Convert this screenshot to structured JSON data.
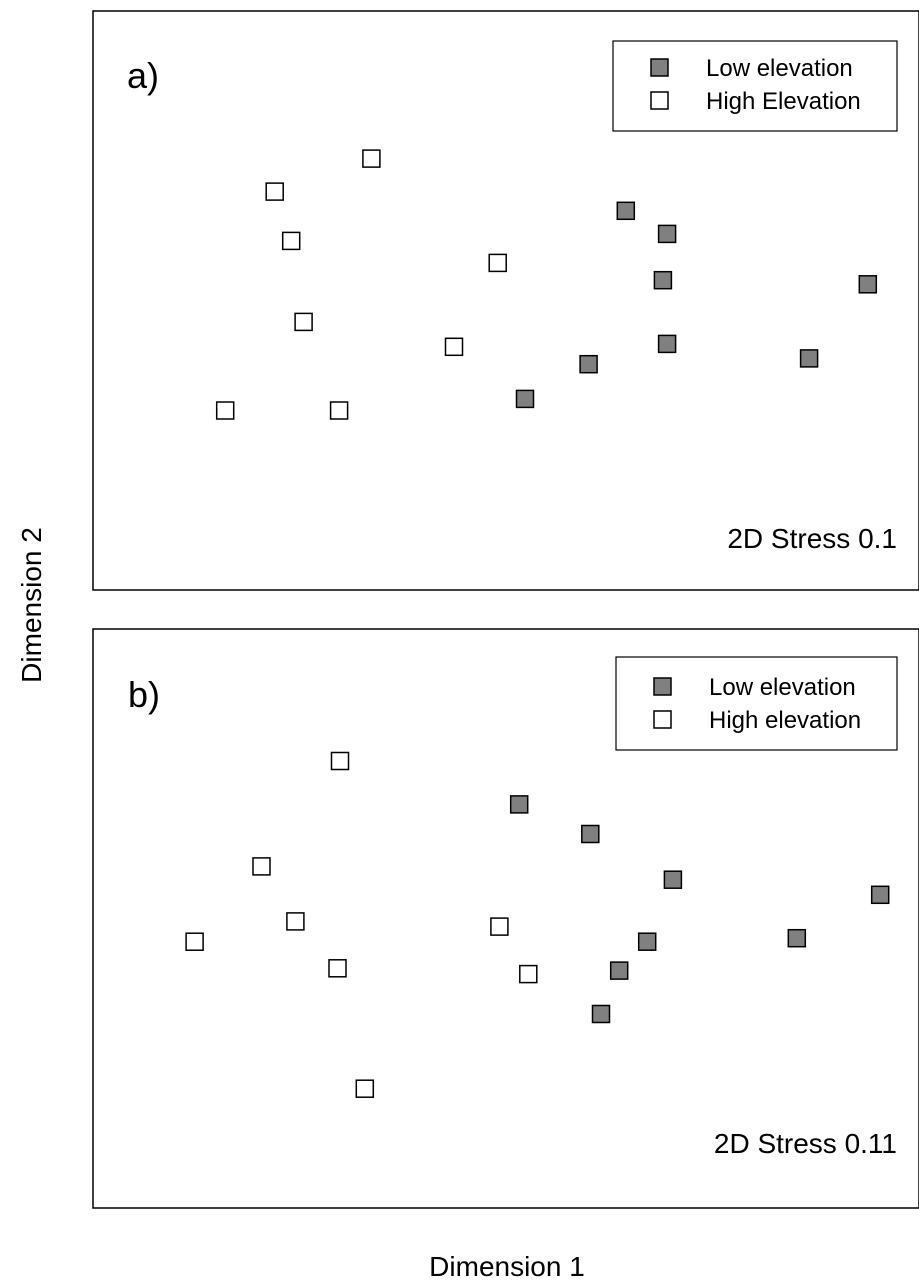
{
  "figure": {
    "xlabel": "Dimension 1",
    "ylabel": "Dimension 2"
  },
  "colors": {
    "low": "#808080",
    "high": "#ffffff",
    "stroke": "#000000"
  },
  "chart_data": [
    {
      "type": "scatter",
      "panel_label": "a)",
      "annotation": "2D Stress 0.1",
      "grid": false,
      "legend_position": "top-right",
      "xlim": [
        0,
        100
      ],
      "ylim": [
        0,
        100
      ],
      "series": [
        {
          "name": "Low elevation",
          "marker": "filled-square",
          "x": [
            64.5,
            69.5,
            69.0,
            69.5,
            52.3,
            60.0,
            86.7,
            93.8
          ],
          "y": [
            65.5,
            61.5,
            53.5,
            42.5,
            33.0,
            39.0,
            40.0,
            52.8
          ]
        },
        {
          "name": "High Elevation",
          "marker": "open-square",
          "x": [
            33.7,
            22.0,
            24.0,
            25.5,
            16.0,
            29.8,
            49.0,
            43.7
          ],
          "y": [
            74.5,
            68.8,
            60.3,
            46.3,
            31.0,
            31.0,
            56.5,
            42.0
          ]
        }
      ]
    },
    {
      "type": "scatter",
      "panel_label": "b)",
      "annotation": "2D Stress 0.11",
      "grid": false,
      "legend_position": "top-right",
      "xlim": [
        0,
        100
      ],
      "ylim": [
        0,
        100
      ],
      "series": [
        {
          "name": "Low elevation",
          "marker": "filled-square",
          "x": [
            51.6,
            60.2,
            70.2,
            67.1,
            63.7,
            61.5,
            85.2,
            95.3
          ],
          "y": [
            69.7,
            64.6,
            56.7,
            46.0,
            41.0,
            33.5,
            46.6,
            54.1
          ]
        },
        {
          "name": "High elevation",
          "marker": "open-square",
          "x": [
            29.9,
            20.4,
            24.5,
            12.3,
            29.6,
            49.2,
            52.7,
            32.9
          ],
          "y": [
            77.2,
            59.0,
            49.5,
            46.0,
            41.4,
            48.6,
            40.4,
            20.6
          ]
        }
      ]
    }
  ]
}
